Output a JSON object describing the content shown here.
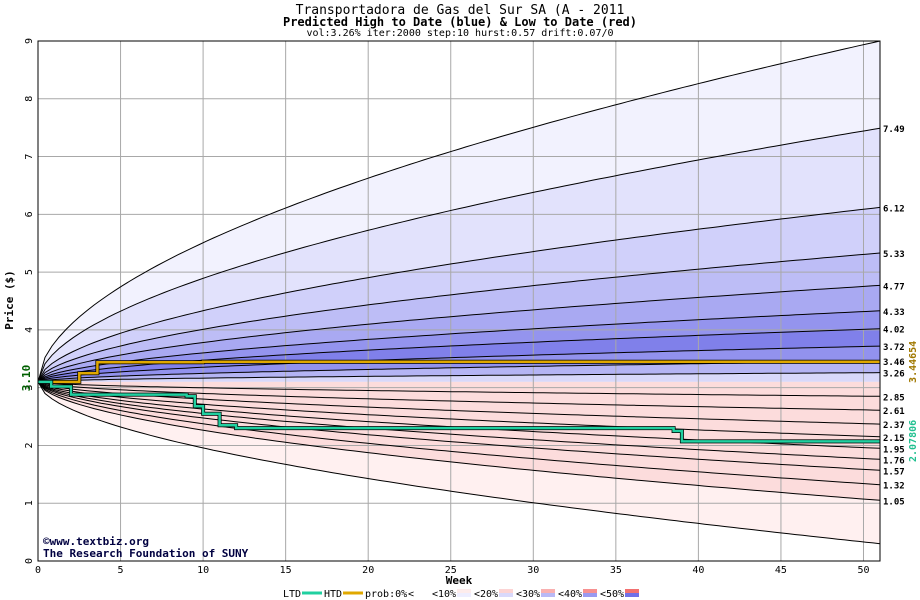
{
  "header": {
    "title": "Transportadora de Gas del Sur SA (A - 2011",
    "subtitle": "Predicted High to Date (blue) &  Low to Date (red)",
    "params": "vol:3.26% iter:2000 step:10 hurst:0.57 drift:0.07/0"
  },
  "watermark": {
    "line1": "©www.textbiz.org",
    "line2": "The Research Foundation of SUNY"
  },
  "chart_data": {
    "type": "area",
    "xlabel": "Week",
    "ylabel": "Price ($)",
    "xlim": [
      0,
      51
    ],
    "ylim": [
      0,
      9
    ],
    "xticks": [
      0,
      5,
      10,
      15,
      20,
      25,
      30,
      35,
      40,
      45,
      50
    ],
    "yticks": [
      0,
      1,
      2,
      3,
      4,
      5,
      6,
      7,
      8,
      9
    ],
    "grid": true,
    "start_price": 3.1,
    "start_label": "3.10",
    "high_percentile_bands": {
      "labels": [
        "7.49",
        "6.12",
        "5.33",
        "4.77",
        "4.33",
        "4.02",
        "3.72",
        "3.46",
        "3.26"
      ],
      "end_values": [
        7.49,
        6.12,
        5.33,
        4.77,
        4.33,
        4.02,
        3.72,
        3.46,
        3.26
      ],
      "outer_envelope_end": 9.0
    },
    "low_percentile_bands": {
      "labels": [
        "2.85",
        "2.61",
        "2.37",
        "2.15",
        "1.95",
        "1.76",
        "1.57",
        "1.32",
        "1.05"
      ],
      "end_values": [
        2.85,
        2.61,
        2.37,
        2.15,
        1.95,
        1.76,
        1.57,
        1.32,
        1.05
      ],
      "outer_envelope_end": 0.3
    },
    "series": [
      {
        "name": "HTD",
        "color": "#e0a800",
        "x": [
          0,
          2,
          2.5,
          3,
          3.6,
          10,
          51
        ],
        "y": [
          3.1,
          3.1,
          3.25,
          3.25,
          3.44,
          3.45,
          3.45
        ]
      },
      {
        "name": "LTD",
        "color": "#20d0a0",
        "x": [
          0,
          0.8,
          1.5,
          2,
          9,
          9.5,
          10,
          11,
          12,
          20,
          38.5,
          39,
          51
        ],
        "y": [
          3.1,
          3.02,
          3.02,
          2.88,
          2.85,
          2.68,
          2.55,
          2.35,
          2.3,
          2.3,
          2.25,
          2.07,
          2.07
        ]
      }
    ],
    "end_markers": [
      {
        "label": "3.44654",
        "value": 3.44654,
        "color": "#a07800"
      },
      {
        "label": "2.07806",
        "value": 2.07806,
        "color": "#20c090"
      }
    ],
    "legend": {
      "position": "bottom",
      "items": [
        {
          "label": "LTD",
          "kind": "line",
          "color": "#20d0a0"
        },
        {
          "label": "HTD",
          "kind": "line",
          "color": "#e0a800"
        },
        {
          "label": "prob:0%",
          "kind": "text"
        },
        {
          "label": "<",
          "kind": "swatch",
          "colors": [
            "#ffffff",
            "#ffffff"
          ]
        },
        {
          "label": "<10%",
          "kind": "swatch",
          "colors": [
            "#fdecec",
            "#eeeeff"
          ]
        },
        {
          "label": "<20%",
          "kind": "swatch",
          "colors": [
            "#fcd4d4",
            "#d9d9fb"
          ]
        },
        {
          "label": "<30%",
          "kind": "swatch",
          "colors": [
            "#f9b0b0",
            "#b9b9f5"
          ]
        },
        {
          "label": "<40%",
          "kind": "swatch",
          "colors": [
            "#f79090",
            "#9a9af0"
          ]
        },
        {
          "label": "<50%",
          "kind": "swatch",
          "colors": [
            "#f27070",
            "#7070e8"
          ]
        }
      ]
    }
  }
}
